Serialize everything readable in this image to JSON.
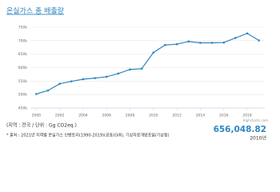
{
  "chart_data": {
    "type": "line",
    "title": "온실가스 총 배출량",
    "x": [
      2000,
      2001,
      2002,
      2003,
      2004,
      2005,
      2006,
      2007,
      2008,
      2009,
      2010,
      2011,
      2012,
      2013,
      2014,
      2015,
      2016,
      2017,
      2018,
      2019
    ],
    "series": [
      {
        "name": "온실가스 총 배출량",
        "color": "#2e86c1",
        "values": [
          502000,
          515000,
          540000,
          549000,
          557000,
          561000,
          566000,
          578000,
          593000,
          596000,
          656048.82,
          684000,
          687000,
          697000,
          692000,
          692000,
          693000,
          710000,
          727000,
          701000
        ]
      }
    ],
    "xlim": [
      1999.5,
      2019.5
    ],
    "xticks": [
      2000,
      2002,
      2004,
      2006,
      2008,
      2010,
      2012,
      2014,
      2016,
      2018
    ],
    "ylim": [
      450000,
      750000
    ],
    "yticks": [
      {
        "value": 450000,
        "label": "450k"
      },
      {
        "value": 500000,
        "label": "500k"
      },
      {
        "value": 550000,
        "label": "550k"
      },
      {
        "value": 600000,
        "label": "600k"
      },
      {
        "value": 650000,
        "label": "650k"
      },
      {
        "value": 700000,
        "label": "700k"
      },
      {
        "value": 750000,
        "label": "750k"
      }
    ],
    "grid": true,
    "credits": "Highcharts.com",
    "unit_note": "(지역 : 전국 / 단위 : Gg CO2eq.)",
    "source_note": "* 출처 : 2021년 지역별 온실가스 인벤토리(1990-2019)(공표(GIR), 기상자료개방포털(기상청)",
    "highlight": {
      "value": 656048.82,
      "value_label": "656,048.82",
      "year_label": "2010년"
    }
  }
}
